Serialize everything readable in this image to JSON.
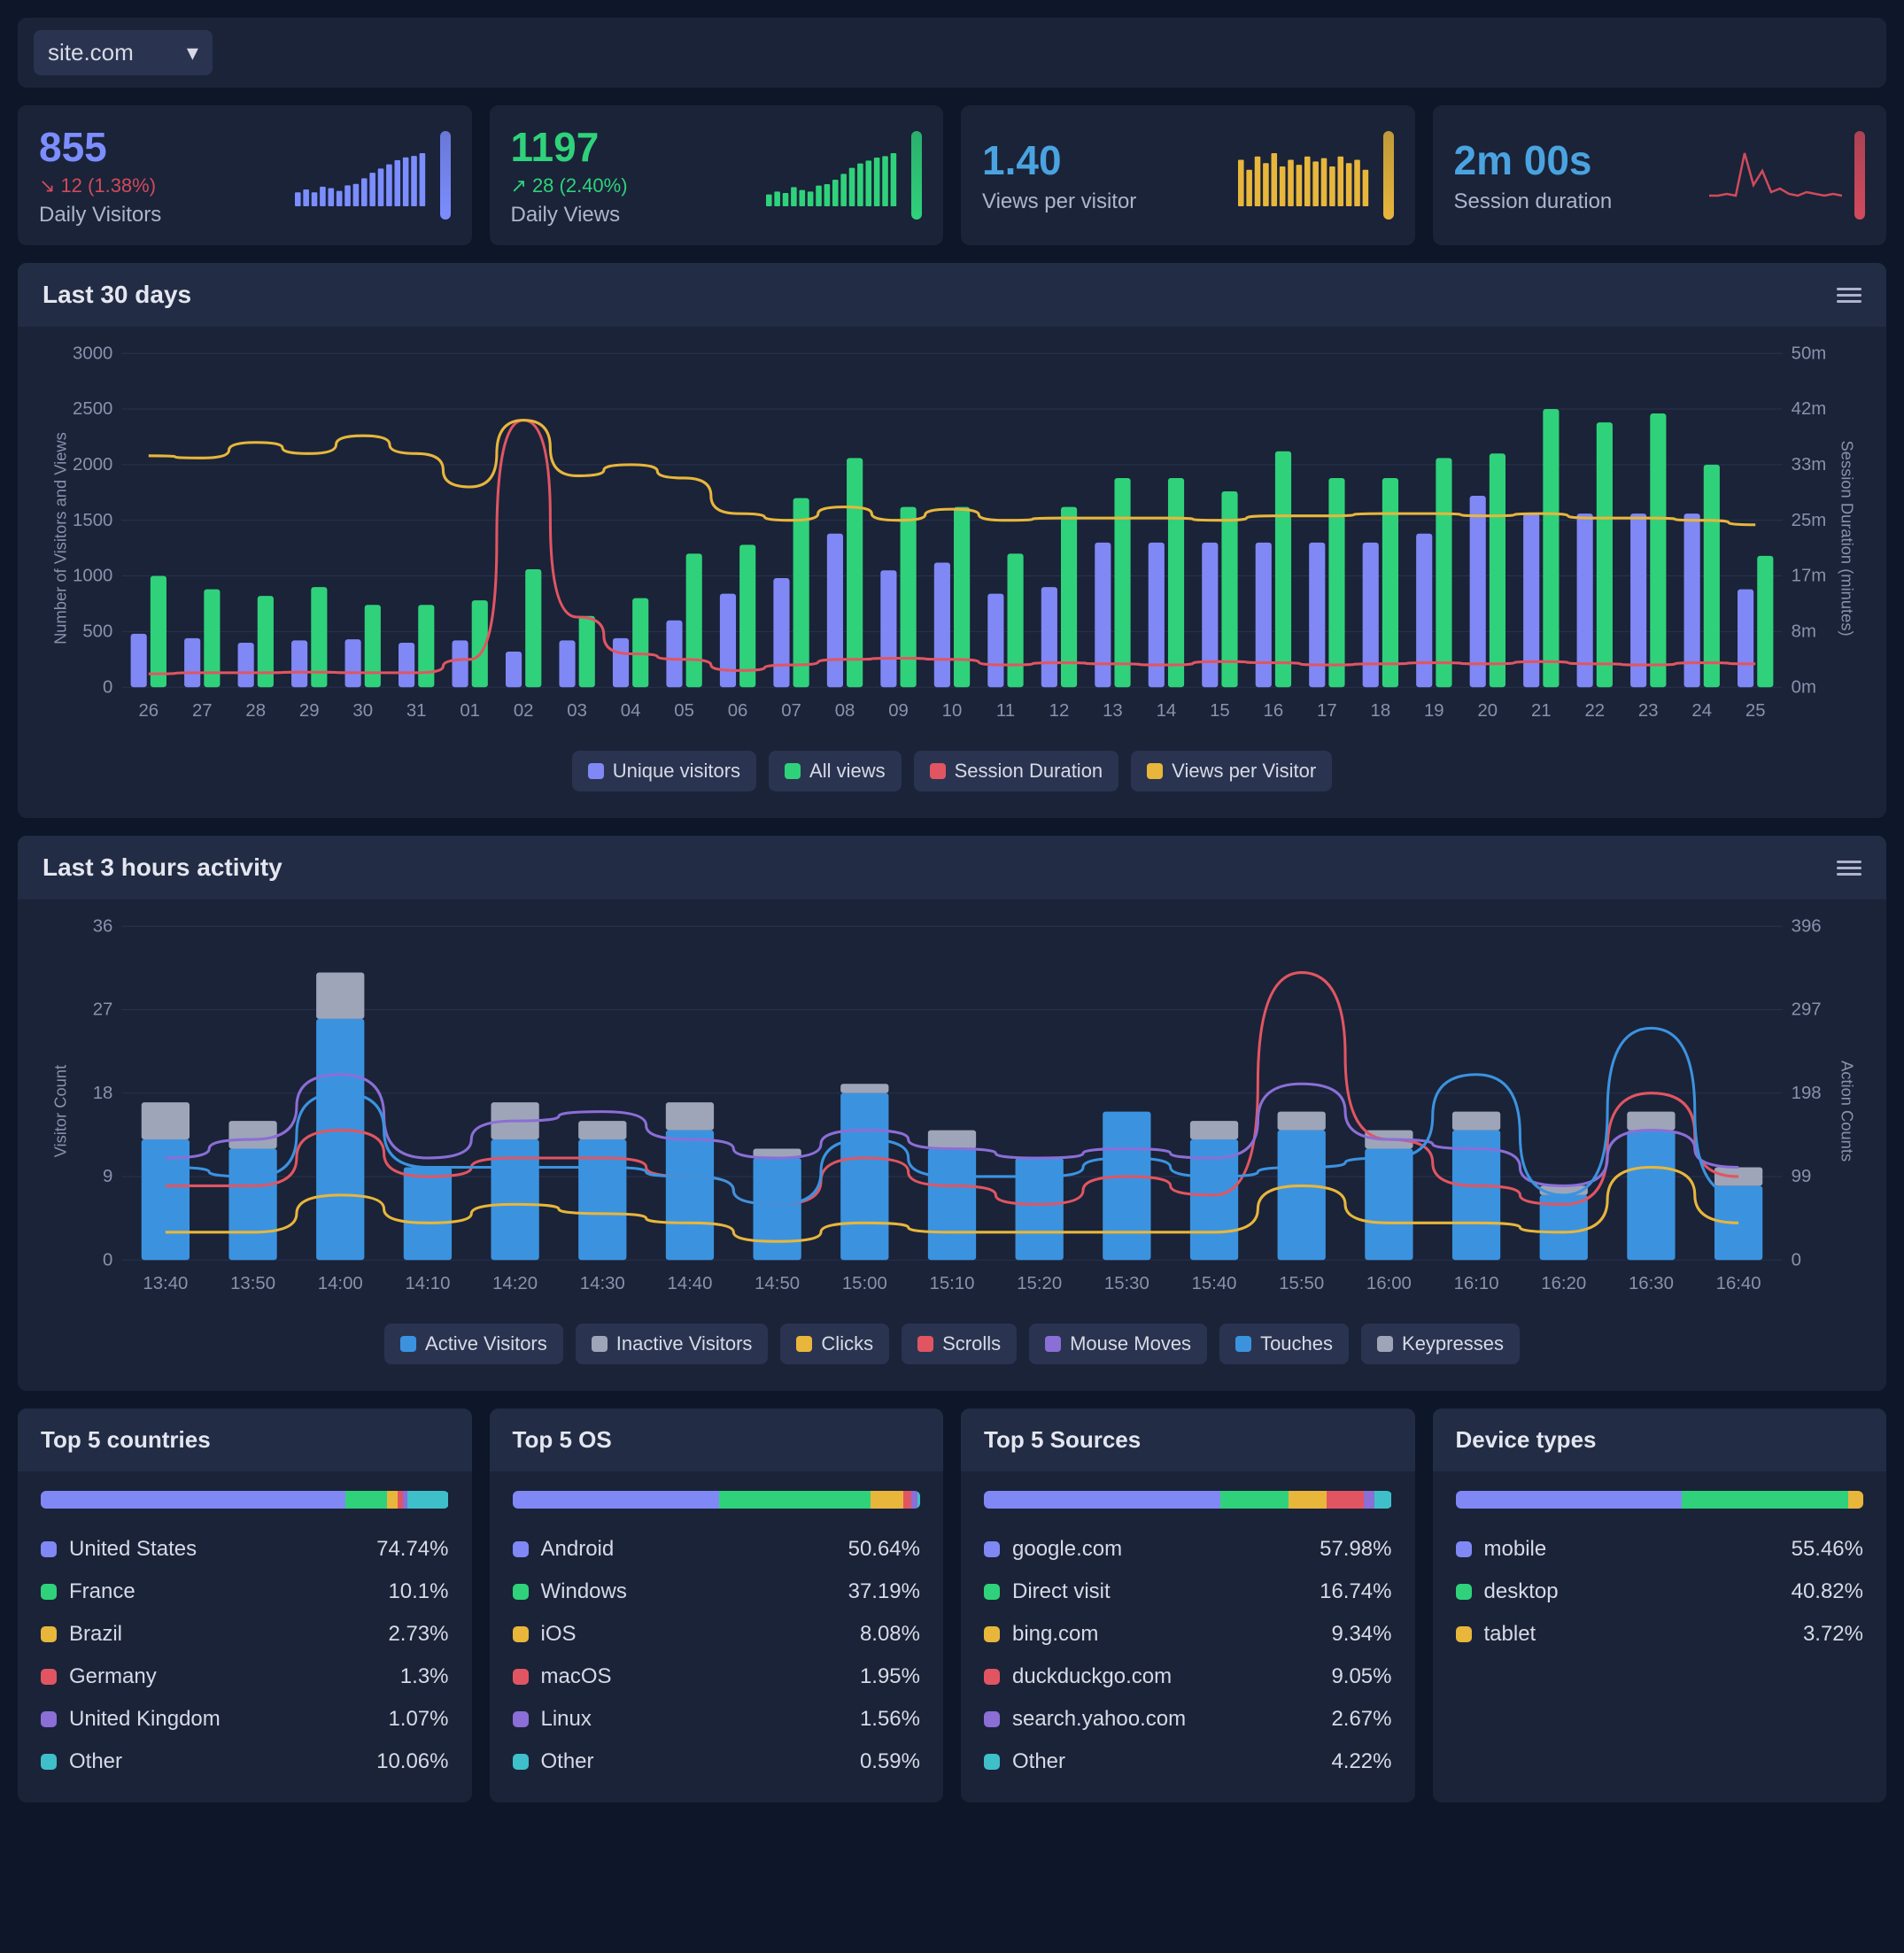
{
  "siteSelector": {
    "value": "site.com"
  },
  "kpi": [
    {
      "value": "855",
      "delta": "12 (1.38%)",
      "deltaDir": "down",
      "deltaColor": "#d14a5c",
      "label": "Daily Visitors",
      "valueColor": "#7c8dff",
      "sparkType": "bars",
      "sparkColor": "#7c8dff",
      "capColor": "#7c8dff",
      "spark": [
        10,
        12,
        10,
        14,
        13,
        11,
        15,
        16,
        20,
        24,
        27,
        30,
        33,
        35,
        36,
        38
      ]
    },
    {
      "value": "1197",
      "delta": "28 (2.40%)",
      "deltaDir": "up",
      "deltaColor": "#2fd27a",
      "label": "Daily Views",
      "valueColor": "#2fd27a",
      "sparkType": "bars",
      "sparkColor": "#2fd27a",
      "capColor": "#2fd27a",
      "spark": [
        8,
        10,
        9,
        13,
        11,
        10,
        14,
        15,
        18,
        22,
        26,
        29,
        31,
        33,
        34,
        36
      ]
    },
    {
      "value": "1.40",
      "delta": "",
      "deltaDir": "",
      "deltaColor": "",
      "label": "Views per visitor",
      "valueColor": "#4aa3e0",
      "sparkType": "bars",
      "sparkColor": "#e8b63b",
      "capColor": "#e8b63b",
      "spark": [
        28,
        22,
        30,
        26,
        32,
        24,
        28,
        25,
        30,
        27,
        29,
        24,
        30,
        26,
        28,
        22
      ]
    },
    {
      "value": "2m 00s",
      "delta": "",
      "deltaDir": "",
      "deltaColor": "",
      "label": "Session duration",
      "valueColor": "#4aa3e0",
      "sparkType": "line",
      "sparkColor": "#d14a5c",
      "capColor": "#d14a5c",
      "spark": [
        6,
        6,
        7,
        6,
        30,
        12,
        20,
        8,
        10,
        7,
        6,
        8,
        7,
        6,
        7,
        6
      ]
    }
  ],
  "chart30": {
    "title": "Last 30 days",
    "leftAxisTitle": "Number of Visitors and Views",
    "rightAxisTitle": "Session Duration (minutes)",
    "leftTicks": [
      0,
      500,
      1000,
      1500,
      2000,
      2500,
      3000
    ],
    "rightTicks": [
      "0m",
      "8m",
      "17m",
      "25m",
      "33m",
      "42m",
      "50m"
    ],
    "categories": [
      "26",
      "27",
      "28",
      "29",
      "30",
      "31",
      "01",
      "02",
      "03",
      "04",
      "05",
      "06",
      "07",
      "08",
      "09",
      "10",
      "11",
      "12",
      "13",
      "14",
      "15",
      "16",
      "17",
      "18",
      "19",
      "20",
      "21",
      "22",
      "23",
      "24",
      "25"
    ],
    "legend": [
      {
        "label": "Unique visitors",
        "color": "#8088f5"
      },
      {
        "label": "All views",
        "color": "#2fd27a"
      },
      {
        "label": "Session Duration",
        "color": "#e15562"
      },
      {
        "label": "Views per Visitor",
        "color": "#e8b63b"
      }
    ],
    "visitors": [
      480,
      440,
      400,
      420,
      430,
      400,
      420,
      320,
      420,
      440,
      600,
      840,
      980,
      1380,
      1050,
      1120,
      840,
      900,
      1300,
      1300,
      1300,
      1300,
      1300,
      1300,
      1380,
      1720,
      1560,
      1560,
      1560,
      1560,
      880
    ],
    "views": [
      1000,
      880,
      820,
      900,
      740,
      740,
      780,
      1060,
      640,
      800,
      1200,
      1280,
      1700,
      2060,
      1620,
      1620,
      1200,
      1620,
      1880,
      1880,
      1760,
      2120,
      1880,
      1880,
      2060,
      2100,
      2500,
      2380,
      2460,
      2000,
      1180
    ],
    "session": [
      120,
      130,
      130,
      135,
      130,
      130,
      250,
      2400,
      630,
      300,
      250,
      150,
      200,
      250,
      260,
      250,
      200,
      220,
      210,
      200,
      230,
      220,
      200,
      210,
      220,
      210,
      230,
      210,
      200,
      220,
      210
    ],
    "vpv": [
      2080,
      2060,
      2200,
      2100,
      2260,
      2100,
      1800,
      2400,
      1900,
      2000,
      1880,
      1560,
      1500,
      1620,
      1500,
      1600,
      1500,
      1520,
      1520,
      1520,
      1500,
      1540,
      1540,
      1560,
      1560,
      1540,
      1560,
      1520,
      1520,
      1500,
      1460
    ],
    "barColors": {
      "visitors": "#8088f5",
      "views": "#2fd27a"
    },
    "lineColors": {
      "session": "#e15562",
      "vpv": "#e8b63b"
    },
    "grid": "#2a334d",
    "bg": "#1a2338"
  },
  "chart3h": {
    "title": "Last 3 hours activity",
    "leftAxisTitle": "Visitor Count",
    "rightAxisTitle": "Action Counts",
    "leftTicks": [
      0,
      9,
      18,
      27,
      36
    ],
    "rightTicks": [
      0,
      99,
      198,
      297,
      396
    ],
    "categories": [
      "13:40",
      "13:50",
      "14:00",
      "14:10",
      "14:20",
      "14:30",
      "14:40",
      "14:50",
      "15:00",
      "15:10",
      "15:20",
      "15:30",
      "15:40",
      "15:50",
      "16:00",
      "16:10",
      "16:20",
      "16:30",
      "16:40"
    ],
    "legend": [
      {
        "label": "Active Visitors",
        "color": "#3b93e0"
      },
      {
        "label": "Inactive Visitors",
        "color": "#9ea5b8"
      },
      {
        "label": "Clicks",
        "color": "#e8b63b"
      },
      {
        "label": "Scrolls",
        "color": "#e15562"
      },
      {
        "label": "Mouse Moves",
        "color": "#8b6ed6"
      },
      {
        "label": "Touches",
        "color": "#3b93e0"
      },
      {
        "label": "Keypresses",
        "color": "#9ea5b8"
      }
    ],
    "active": [
      13,
      12,
      26,
      10,
      13,
      13,
      14,
      11,
      18,
      12,
      11,
      16,
      13,
      14,
      12,
      14,
      7,
      14,
      8
    ],
    "inactive": [
      4,
      3,
      5,
      0,
      4,
      2,
      3,
      1,
      1,
      2,
      0,
      0,
      2,
      2,
      2,
      2,
      1,
      2,
      2
    ],
    "clicks": [
      3,
      3,
      7,
      4,
      6,
      5,
      4,
      2,
      4,
      3,
      3,
      3,
      3,
      8,
      4,
      4,
      3,
      10,
      4
    ],
    "scrolls": [
      8,
      8,
      14,
      9,
      11,
      11,
      9,
      6,
      11,
      8,
      6,
      9,
      7,
      31,
      13,
      8,
      6,
      18,
      9
    ],
    "moves": [
      11,
      13,
      20,
      11,
      15,
      16,
      13,
      11,
      14,
      12,
      11,
      12,
      11,
      19,
      13,
      12,
      8,
      14,
      10
    ],
    "touches": [
      10,
      9,
      18,
      10,
      10,
      10,
      9,
      6,
      13,
      9,
      9,
      11,
      9,
      10,
      11,
      20,
      7,
      25,
      7
    ],
    "barColors": {
      "active": "#3b93e0",
      "inactive": "#9ea5b8"
    },
    "lineColors": {
      "clicks": "#e8b63b",
      "scrolls": "#e15562",
      "moves": "#8b6ed6",
      "touches": "#3b93e0"
    },
    "grid": "#2a334d"
  },
  "lists": [
    {
      "title": "Top 5 countries",
      "items": [
        {
          "label": "United States",
          "pct": "74.74%",
          "w": 74.74,
          "color": "#8088f5"
        },
        {
          "label": "France",
          "pct": "10.1%",
          "w": 10.1,
          "color": "#2fd27a"
        },
        {
          "label": "Brazil",
          "pct": "2.73%",
          "w": 2.73,
          "color": "#e8b63b"
        },
        {
          "label": "Germany",
          "pct": "1.3%",
          "w": 1.3,
          "color": "#e15562"
        },
        {
          "label": "United Kingdom",
          "pct": "1.07%",
          "w": 1.07,
          "color": "#8b6ed6"
        },
        {
          "label": "Other",
          "pct": "10.06%",
          "w": 10.06,
          "color": "#3fbfc9"
        }
      ]
    },
    {
      "title": "Top 5 OS",
      "items": [
        {
          "label": "Android",
          "pct": "50.64%",
          "w": 50.64,
          "color": "#8088f5"
        },
        {
          "label": "Windows",
          "pct": "37.19%",
          "w": 37.19,
          "color": "#2fd27a"
        },
        {
          "label": "iOS",
          "pct": "8.08%",
          "w": 8.08,
          "color": "#e8b63b"
        },
        {
          "label": "macOS",
          "pct": "1.95%",
          "w": 1.95,
          "color": "#e15562"
        },
        {
          "label": "Linux",
          "pct": "1.56%",
          "w": 1.56,
          "color": "#8b6ed6"
        },
        {
          "label": "Other",
          "pct": "0.59%",
          "w": 0.59,
          "color": "#3fbfc9"
        }
      ]
    },
    {
      "title": "Top 5 Sources",
      "items": [
        {
          "label": "google.com",
          "pct": "57.98%",
          "w": 57.98,
          "color": "#8088f5"
        },
        {
          "label": "Direct visit",
          "pct": "16.74%",
          "w": 16.74,
          "color": "#2fd27a"
        },
        {
          "label": "bing.com",
          "pct": "9.34%",
          "w": 9.34,
          "color": "#e8b63b"
        },
        {
          "label": "duckduckgo.com",
          "pct": "9.05%",
          "w": 9.05,
          "color": "#e15562"
        },
        {
          "label": "search.yahoo.com",
          "pct": "2.67%",
          "w": 2.67,
          "color": "#8b6ed6"
        },
        {
          "label": "Other",
          "pct": "4.22%",
          "w": 4.22,
          "color": "#3fbfc9"
        }
      ]
    },
    {
      "title": "Device types",
      "items": [
        {
          "label": "mobile",
          "pct": "55.46%",
          "w": 55.46,
          "color": "#8088f5"
        },
        {
          "label": "desktop",
          "pct": "40.82%",
          "w": 40.82,
          "color": "#2fd27a"
        },
        {
          "label": "tablet",
          "pct": "3.72%",
          "w": 3.72,
          "color": "#e8b63b"
        }
      ]
    }
  ]
}
